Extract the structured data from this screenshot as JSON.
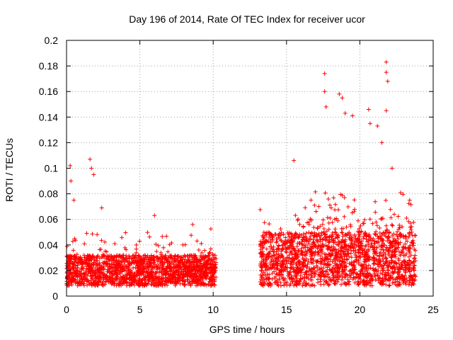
{
  "chart_data": {
    "type": "scatter",
    "title": "Day 196 of 2014, Rate Of TEC Index for receiver ucor",
    "xlabel": "GPS time / hours",
    "ylabel": "ROTI / TECUs",
    "xlim": [
      0,
      25
    ],
    "ylim": [
      0,
      0.2
    ],
    "xticks": [
      0,
      5,
      10,
      15,
      20,
      25
    ],
    "yticks": [
      0,
      0.02,
      0.04,
      0.06,
      0.08,
      0.1,
      0.12,
      0.14,
      0.16,
      0.18,
      0.2
    ],
    "xtick_labels": [
      "0",
      "5",
      "10",
      "15",
      "20",
      "25"
    ],
    "ytick_labels": [
      "0",
      "0.02",
      "0.04",
      "0.06",
      "0.08",
      "0.1",
      "0.12",
      "0.14",
      "0.16",
      "0.18",
      "0.2"
    ],
    "grid": true,
    "marker": "+",
    "color": "#ff0000",
    "series": [
      {
        "name": "ROTI",
        "notable_points": [
          {
            "x": 0.25,
            "y": 0.102
          },
          {
            "x": 0.3,
            "y": 0.09
          },
          {
            "x": 0.5,
            "y": 0.075
          },
          {
            "x": 1.6,
            "y": 0.107
          },
          {
            "x": 1.7,
            "y": 0.1
          },
          {
            "x": 1.85,
            "y": 0.095
          },
          {
            "x": 2.4,
            "y": 0.069
          },
          {
            "x": 6.0,
            "y": 0.063
          },
          {
            "x": 8.6,
            "y": 0.056
          },
          {
            "x": 15.5,
            "y": 0.106
          },
          {
            "x": 17.6,
            "y": 0.174
          },
          {
            "x": 17.6,
            "y": 0.16
          },
          {
            "x": 17.7,
            "y": 0.148
          },
          {
            "x": 18.6,
            "y": 0.158
          },
          {
            "x": 18.8,
            "y": 0.155
          },
          {
            "x": 19.0,
            "y": 0.143
          },
          {
            "x": 19.5,
            "y": 0.141
          },
          {
            "x": 20.6,
            "y": 0.146
          },
          {
            "x": 20.7,
            "y": 0.135
          },
          {
            "x": 21.2,
            "y": 0.133
          },
          {
            "x": 21.8,
            "y": 0.183
          },
          {
            "x": 21.8,
            "y": 0.175
          },
          {
            "x": 21.9,
            "y": 0.168
          },
          {
            "x": 21.8,
            "y": 0.145
          },
          {
            "x": 21.5,
            "y": 0.12
          },
          {
            "x": 22.2,
            "y": 0.1
          },
          {
            "x": 23.4,
            "y": 0.075
          }
        ]
      }
    ],
    "segments": [
      {
        "start": 0.0,
        "end": 10.2,
        "base_min": 0.008,
        "base_max": 0.032
      },
      {
        "start": 13.2,
        "end": 23.8,
        "base_min": 0.008,
        "base_max": 0.05
      }
    ]
  }
}
